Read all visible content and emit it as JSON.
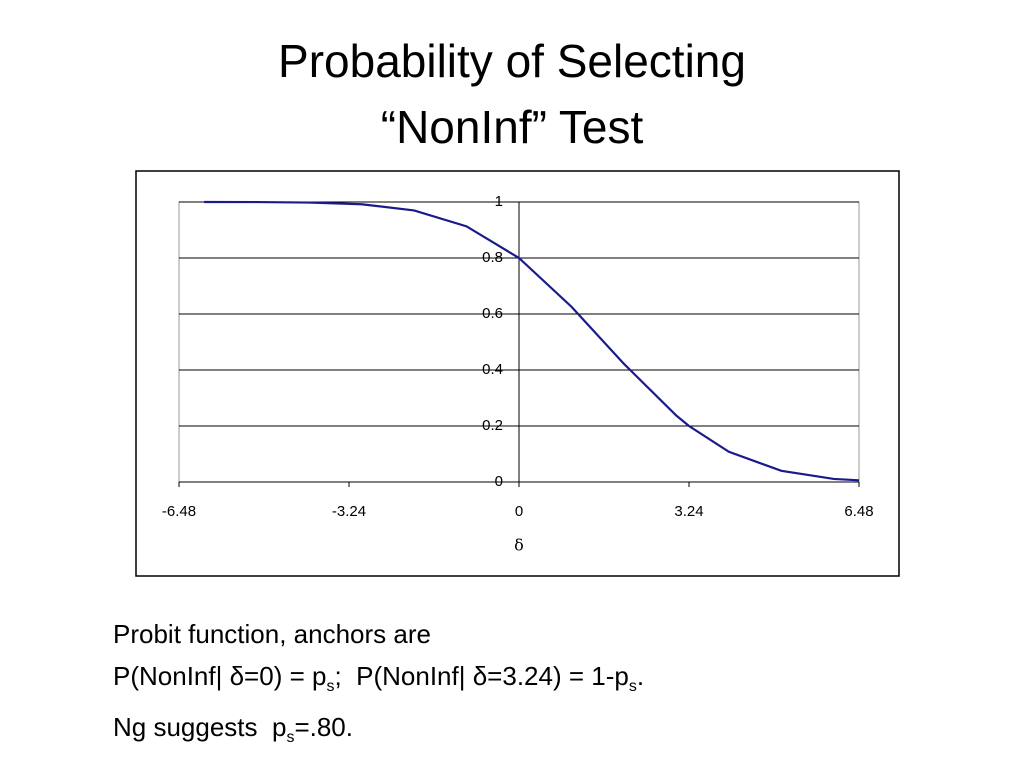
{
  "title": [
    "Probability of Selecting",
    "“NonInf” Test"
  ],
  "chart_data": {
    "type": "line",
    "x_label": "δ",
    "color": "#1a1a8c",
    "x": [
      -6,
      -5,
      -4,
      -3,
      -2,
      -1,
      0,
      1,
      2,
      3,
      3.24,
      4,
      5,
      6,
      6.48
    ],
    "values": [
      1.0,
      0.9997,
      0.998,
      0.992,
      0.97,
      0.913,
      0.8,
      0.626,
      0.422,
      0.237,
      0.2,
      0.108,
      0.04,
      0.011,
      0.006
    ],
    "xlim": [
      -6.48,
      6.48
    ],
    "xticks": [
      -6.48,
      -3.24,
      0,
      3.24,
      6.48
    ],
    "ylim": [
      0,
      1
    ],
    "yticks": [
      0,
      0.2,
      0.4,
      0.6,
      0.8,
      1
    ],
    "grid": true
  },
  "notes": [
    [
      {
        "text": "Probit function, anchors are"
      }
    ],
    [
      {
        "text": "P(NonInf| δ=0) = p"
      },
      {
        "sub": "s"
      },
      {
        "text": ";  P(NonInf| δ=3.24) = 1-p"
      },
      {
        "sub": "s"
      },
      {
        "text": "."
      }
    ],
    [
      {
        "text": "Ng suggests  p"
      },
      {
        "sub": "s"
      },
      {
        "text": "=.80."
      }
    ]
  ]
}
